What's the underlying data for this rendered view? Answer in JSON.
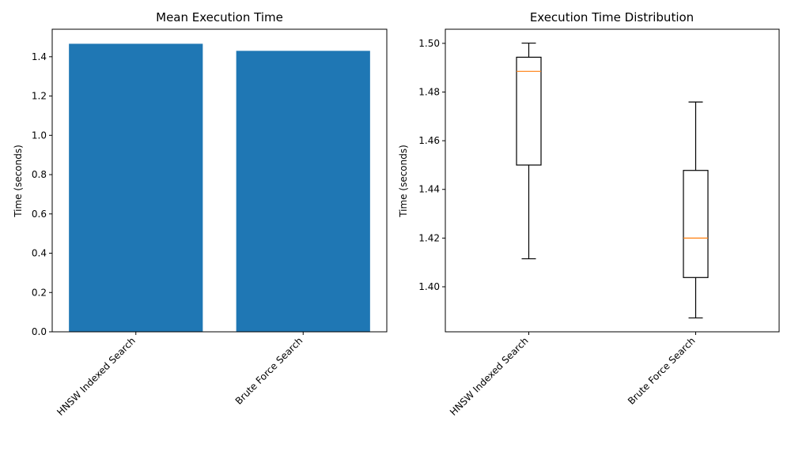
{
  "chart_data": [
    {
      "type": "bar",
      "title": "Mean Execution Time",
      "xlabel": "",
      "ylabel": "Time (seconds)",
      "categories": [
        "HNSW Indexed Search",
        "Brute Force Search"
      ],
      "values": [
        1.466,
        1.43
      ],
      "ylim": [
        0,
        1.54
      ],
      "yticks": [
        0.0,
        0.2,
        0.4,
        0.6,
        0.8,
        1.0,
        1.2,
        1.4
      ],
      "ytick_decimals": 1,
      "bar_color": "#1f77b4",
      "grid": false
    },
    {
      "type": "box",
      "title": "Execution Time Distribution",
      "xlabel": "",
      "ylabel": "Time (seconds)",
      "categories": [
        "HNSW Indexed Search",
        "Brute Force Search"
      ],
      "boxes": [
        {
          "whisker_low": 1.4115,
          "q1": 1.45,
          "median": 1.4885,
          "q3": 1.4943,
          "whisker_high": 1.5001
        },
        {
          "whisker_low": 1.3872,
          "q1": 1.4038,
          "median": 1.42,
          "q3": 1.4478,
          "whisker_high": 1.4759
        }
      ],
      "ylim": [
        1.3815,
        1.5058
      ],
      "yticks": [
        1.4,
        1.42,
        1.44,
        1.46,
        1.48,
        1.5
      ],
      "ytick_decimals": 2,
      "median_color": "#ff7f0e",
      "grid": false
    }
  ]
}
